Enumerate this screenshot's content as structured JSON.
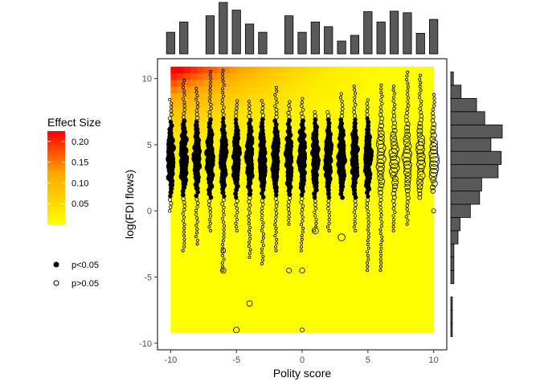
{
  "chart_data": {
    "type": "scatter",
    "xlabel": "Polity score",
    "ylabel": "log(FDI flows)",
    "xlim": [
      -11,
      11
    ],
    "ylim": [
      -10.5,
      11.5
    ],
    "x_ticks": [
      -10,
      -5,
      0,
      5,
      10
    ],
    "y_ticks": [
      -10,
      -5,
      0,
      5,
      10
    ],
    "x_tick_labels": [
      "-10",
      "-5",
      "0",
      "5",
      "10"
    ],
    "y_tick_labels": [
      "-10",
      "-5",
      "0",
      "5",
      "10"
    ],
    "background": {
      "type": "heatmap",
      "x_range": [
        -10,
        10
      ],
      "y_range": [
        -9.2,
        10.9
      ],
      "description_scale": "Effect Size",
      "max_effect_corner": "top-left"
    },
    "color_legend": {
      "title": "Effect Size",
      "ticks": [
        "0.20",
        "0.15",
        "0.10",
        "0.05"
      ],
      "tick_values": [
        0.2,
        0.15,
        0.1,
        0.05
      ],
      "min": 0.0,
      "max": 0.225,
      "low_color": "#FFFF00",
      "high_color": "#FF0000"
    },
    "shape_legend": {
      "items": [
        {
          "label": "p<0.05",
          "filled": true
        },
        {
          "label": "p>0.05",
          "filled": false
        }
      ]
    },
    "significance_rule": "filled where polity < 6 and y between 1 and 7",
    "columns": [
      {
        "x": -10,
        "ymin": 0.0,
        "ymax": 8.5
      },
      {
        "x": -9,
        "ymin": -3.0,
        "ymax": 10.0
      },
      {
        "x": -8,
        "ymin": -2.5,
        "ymax": 9.5
      },
      {
        "x": -7,
        "ymin": -1.5,
        "ymax": 10.8
      },
      {
        "x": -6,
        "ymin": -4.5,
        "ymax": 10.8
      },
      {
        "x": -5,
        "ymin": -1.5,
        "ymax": 8.5
      },
      {
        "x": -4,
        "ymin": -3.5,
        "ymax": 8.5
      },
      {
        "x": -3,
        "ymin": -4.0,
        "ymax": 8.5
      },
      {
        "x": -2,
        "ymin": -3.0,
        "ymax": 9.5
      },
      {
        "x": -1,
        "ymin": -1.0,
        "ymax": 8.5
      },
      {
        "x": 0,
        "ymin": -3.0,
        "ymax": 8.5
      },
      {
        "x": 1,
        "ymin": -1.5,
        "ymax": 7.5
      },
      {
        "x": 2,
        "ymin": -1.5,
        "ymax": 7.5
      },
      {
        "x": 3,
        "ymin": 1.0,
        "ymax": 9.0
      },
      {
        "x": 4,
        "ymin": -1.5,
        "ymax": 9.5
      },
      {
        "x": 5,
        "ymin": -4.5,
        "ymax": 8.5
      },
      {
        "x": 6,
        "ymin": -4.5,
        "ymax": 9.5
      },
      {
        "x": 7,
        "ymin": -1.5,
        "ymax": 9.5
      },
      {
        "x": 8,
        "ymin": -1.0,
        "ymax": 10.5
      },
      {
        "x": 9,
        "ymin": 1.0,
        "ymax": 10.5
      },
      {
        "x": 10,
        "ymin": 1.5,
        "ymax": 9.0
      }
    ],
    "outliers": [
      {
        "x": -6,
        "y": -4.5
      },
      {
        "x": -1,
        "y": -4.5
      },
      {
        "x": 0,
        "y": -4.5
      },
      {
        "x": -5,
        "y": -9.0
      },
      {
        "x": 0,
        "y": -9.0
      },
      {
        "x": -6,
        "y": -3.0
      },
      {
        "x": -4,
        "y": -7.0
      },
      {
        "x": 3,
        "y": -2.0
      },
      {
        "x": 1,
        "y": -1.5
      },
      {
        "x": 10,
        "y": 0.0
      }
    ],
    "top_histogram": {
      "bins_x": [
        -10,
        -9,
        -8,
        -7,
        -6,
        -5,
        -4,
        -3,
        -2,
        -1,
        0,
        1,
        2,
        3,
        4,
        5,
        6,
        7,
        8,
        9,
        10
      ],
      "relative_heights": [
        0.42,
        0.62,
        0.0,
        0.74,
        1.0,
        0.85,
        0.58,
        0.42,
        0.0,
        0.74,
        0.42,
        0.62,
        0.53,
        0.25,
        0.36,
        0.82,
        0.62,
        0.83,
        0.8,
        0.4,
        0.67
      ]
    },
    "right_histogram": {
      "bins_y": [
        -9,
        -8,
        -7,
        -6,
        -5,
        -4,
        -3,
        -2,
        -1,
        0,
        1,
        2,
        3,
        4,
        5,
        6,
        7,
        8,
        9,
        10
      ],
      "relative_heights": [
        0.03,
        0.03,
        0.03,
        0.0,
        0.06,
        0.06,
        0.06,
        0.14,
        0.18,
        0.38,
        0.56,
        0.6,
        0.92,
        0.98,
        0.78,
        1.0,
        0.66,
        0.5,
        0.2,
        0.05
      ]
    }
  }
}
